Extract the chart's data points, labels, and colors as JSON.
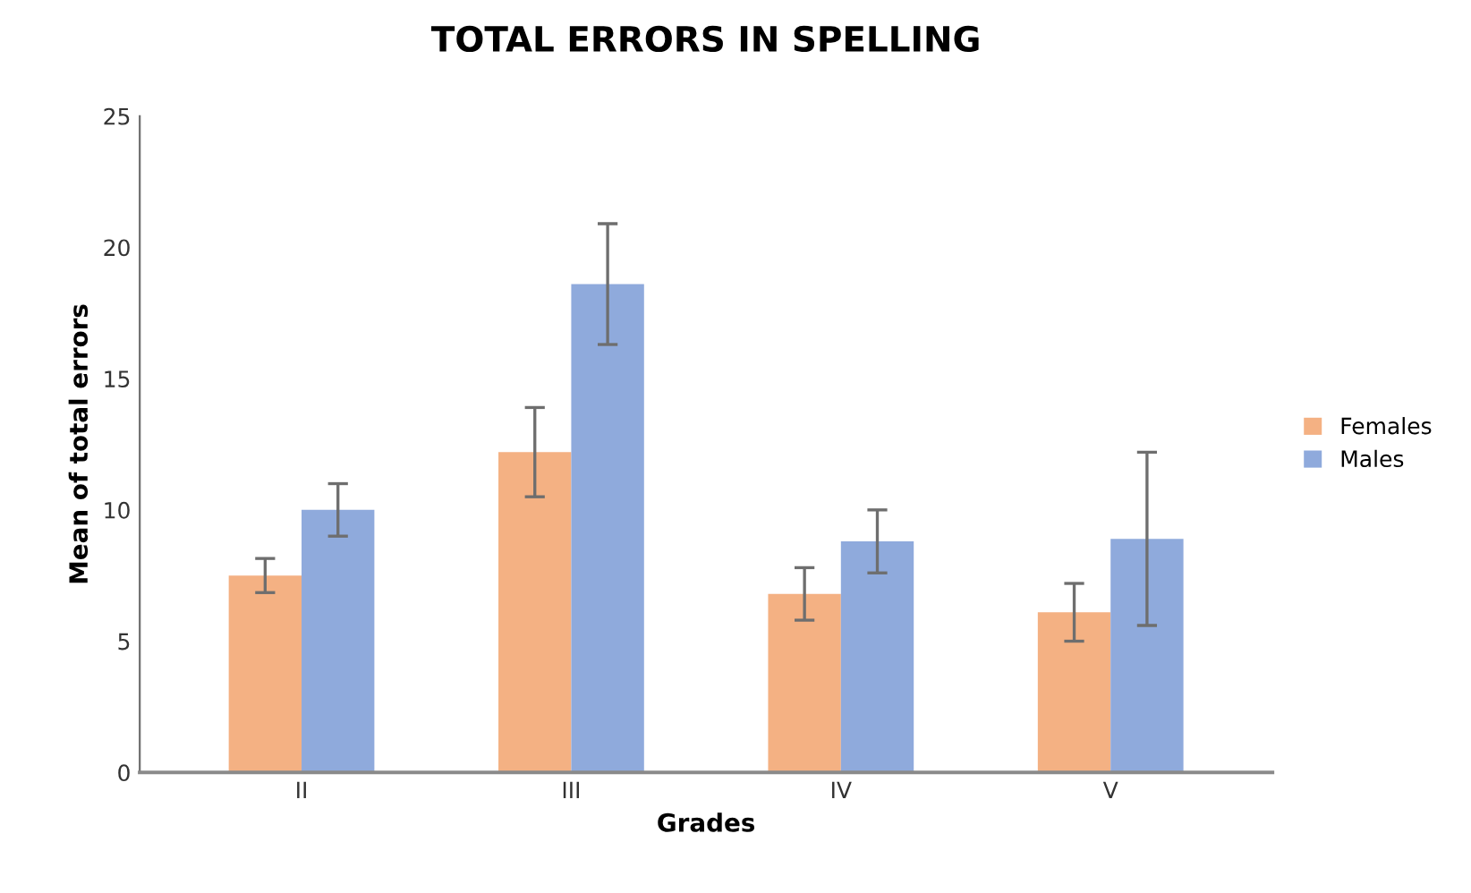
{
  "chart_data": {
    "type": "bar",
    "title": "TOTAL ERRORS IN SPELLING",
    "xlabel": "Grades",
    "ylabel": "Mean of total errors",
    "categories": [
      "II",
      "III",
      "IV",
      "V"
    ],
    "series": [
      {
        "name": "Females",
        "color": "#f4b183",
        "values": [
          7.5,
          12.2,
          6.8,
          6.1
        ],
        "errors": [
          0.65,
          1.7,
          1.0,
          1.1
        ]
      },
      {
        "name": "Males",
        "color": "#8faadc",
        "values": [
          10,
          18.6,
          8.8,
          8.9
        ],
        "errors": [
          1.0,
          2.3,
          1.2,
          3.3
        ]
      }
    ],
    "ylim": [
      0,
      25
    ],
    "yticks": [
      0,
      5,
      10,
      15,
      20,
      25
    ],
    "grid": false,
    "legend": "right"
  }
}
